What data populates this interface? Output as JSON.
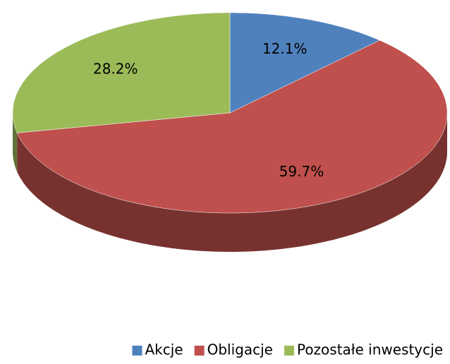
{
  "chart_data": {
    "type": "pie",
    "categories": [
      "Akcje",
      "Obligacje",
      "Pozostałe inwestycje"
    ],
    "values": [
      12.1,
      59.7,
      28.2
    ],
    "value_labels": [
      "12.1%",
      "59.7%",
      "28.2%"
    ],
    "colors": [
      "#4f81bd",
      "#c0504d",
      "#9bbb59"
    ],
    "legend": "bottom"
  }
}
